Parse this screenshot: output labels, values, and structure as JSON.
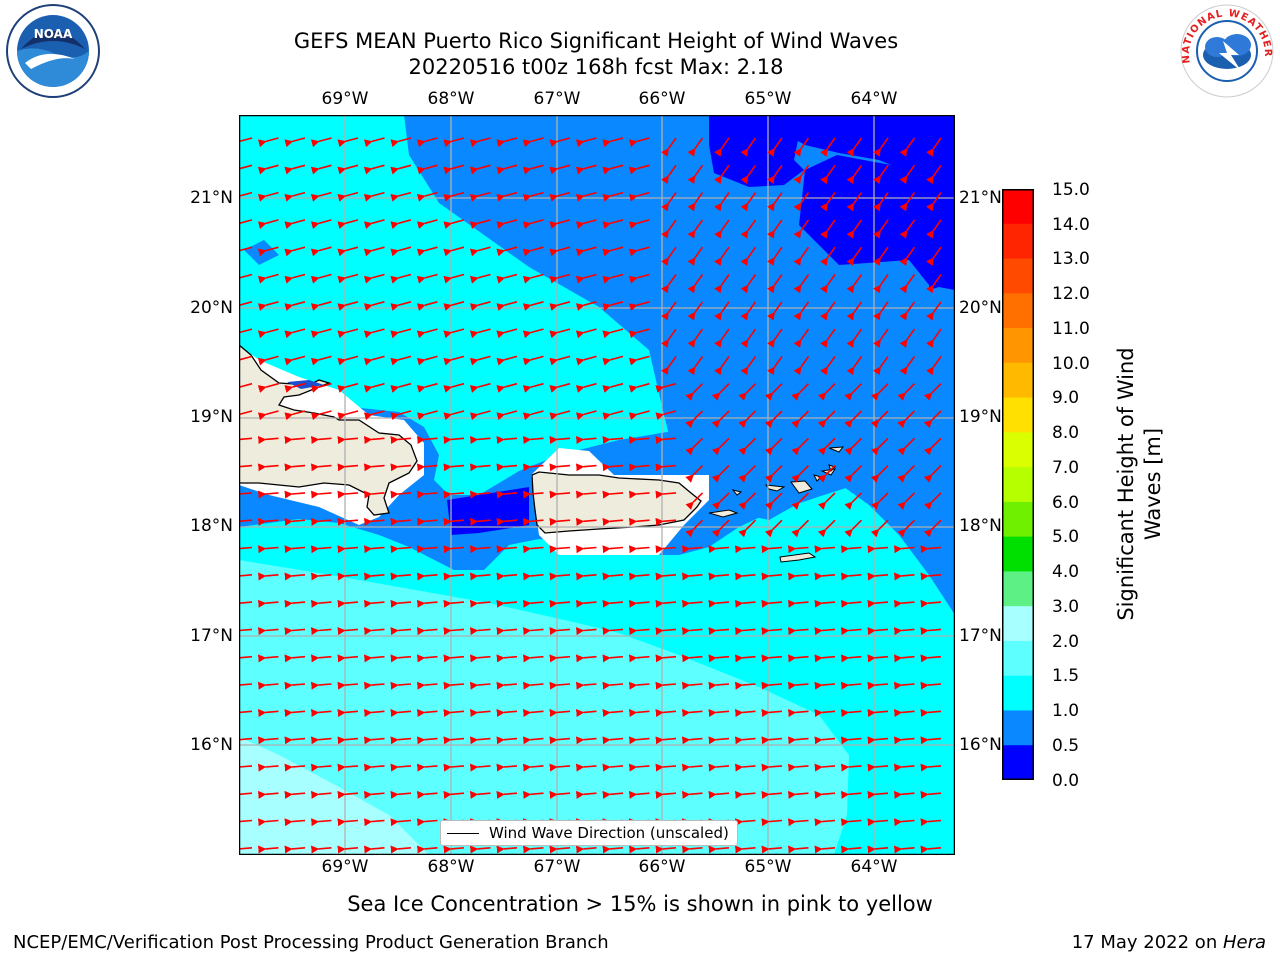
{
  "title": {
    "line1": "GEFS MEAN Puerto Rico Significant Height of Wind Waves",
    "line2": "20220516 t00z 168h fcst   Max: 2.18"
  },
  "map": {
    "lon_labels": [
      "69°W",
      "68°W",
      "67°W",
      "66°W",
      "65°W",
      "64°W"
    ],
    "lat_labels": [
      "21°N",
      "20°N",
      "19°N",
      "18°N",
      "17°N",
      "16°N"
    ],
    "legend_label": "Wind Wave Direction (unscaled)"
  },
  "colorbar": {
    "title": "Significant Height of Wind Waves [m]",
    "ticks": [
      "15.0",
      "14.0",
      "13.0",
      "12.0",
      "11.0",
      "10.0",
      "9.0",
      "8.0",
      "7.0",
      "6.0",
      "5.0",
      "4.0",
      "3.0",
      "2.0",
      "1.5",
      "1.0",
      "0.5",
      "0.0"
    ],
    "colors_top_to_bottom": [
      "#ff0000",
      "#ff2500",
      "#ff4a00",
      "#ff7000",
      "#ff9500",
      "#ffba00",
      "#ffe000",
      "#ffff00",
      "#daff00",
      "#b5ff00",
      "#6ef000",
      "#00e000",
      "#00d800",
      "#5cf085",
      "#a8ffff",
      "#5dffff",
      "#00ffff",
      "#0a88ff",
      "#0000ff"
    ]
  },
  "logos": {
    "noaa_text": "NOAA",
    "nws_text": "NATIONAL WEATHER SERVICE"
  },
  "note": "Sea Ice Concentration > 15% is shown in pink to yellow",
  "footer": {
    "left": "NCEP/EMC/Verification Post Processing Product Generation Branch",
    "right_prefix": "17 May 2022 on ",
    "right_machine": "Hera"
  },
  "map_colors": {
    "bin_0_0_5": "#0000ff",
    "bin_0_5_1_0": "#0a88ff",
    "bin_1_0_1_5": "#00ffff",
    "bin_1_5_2_0": "#5dffff",
    "bin_2_0_3_0": "#a8ffff",
    "land": "#eeecdc",
    "arrows": "#ff0000"
  }
}
